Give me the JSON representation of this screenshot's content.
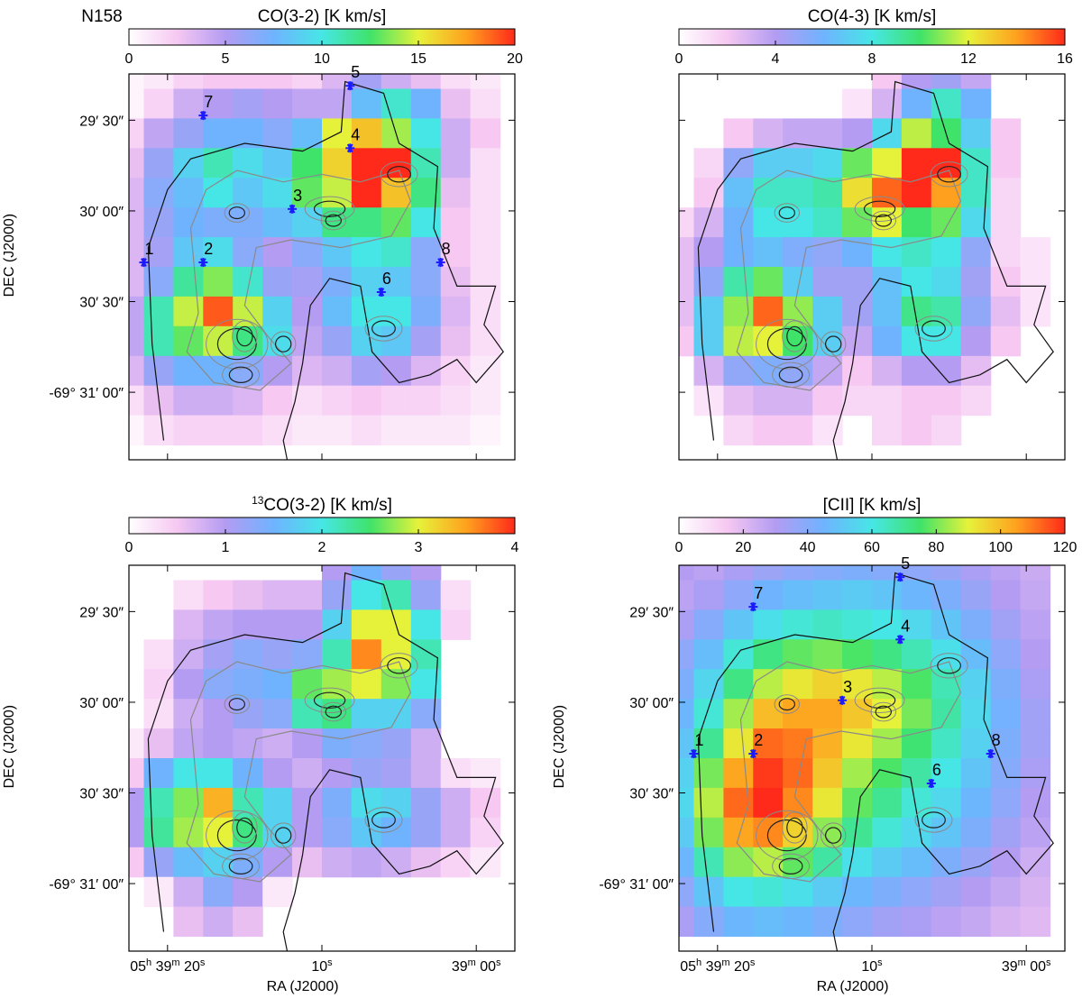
{
  "chart_data": [
    {
      "type": "heatmap",
      "label": "N158",
      "title": "CO(3-2) [K km/s]",
      "ylabel": "DEC (J2000)",
      "xlabel": "",
      "colorbar": {
        "min": 0,
        "max": 20,
        "ticks": [
          "0",
          "5",
          "10",
          "15",
          "20"
        ]
      },
      "yticks": [
        "29′ 30″",
        "30′ 00″",
        "30′ 30″",
        "-69° 31′ 00″"
      ],
      "xticks": [],
      "grid": [
        [
          0.5,
          1.0,
          2.0,
          2.5,
          2.5,
          2.5,
          2.0,
          3.5,
          5.5,
          4.0,
          3.0,
          1.5,
          1.0
        ],
        [
          0.5,
          2.0,
          4.0,
          5.0,
          5.5,
          5.0,
          4.5,
          4.5,
          8.0,
          10.5,
          7.5,
          3.0,
          1.5
        ],
        [
          2.0,
          4.5,
          6.0,
          7.5,
          7.5,
          6.5,
          8.0,
          15.0,
          16.5,
          14.0,
          10.0,
          4.0,
          2.5
        ],
        [
          3.0,
          6.0,
          9.0,
          11.0,
          9.5,
          8.5,
          12.5,
          16.0,
          20.0,
          20.0,
          11.0,
          4.0,
          1.5
        ],
        [
          3.5,
          6.5,
          8.0,
          10.0,
          8.5,
          9.5,
          13.0,
          14.5,
          20.0,
          16.5,
          12.0,
          3.0,
          1.5
        ],
        [
          3.5,
          6.0,
          7.5,
          7.0,
          7.0,
          8.0,
          9.0,
          12.0,
          12.0,
          13.0,
          10.0,
          2.5,
          1.5
        ],
        [
          3.5,
          5.5,
          8.5,
          9.5,
          6.5,
          5.0,
          6.5,
          8.5,
          10.0,
          10.5,
          6.5,
          2.5,
          1.5
        ],
        [
          3.5,
          6.5,
          11.5,
          13.5,
          10.5,
          6.0,
          5.5,
          7.0,
          9.0,
          8.5,
          6.5,
          3.0,
          1.5
        ],
        [
          4.5,
          11.0,
          14.5,
          19.0,
          14.5,
          9.0,
          5.0,
          8.0,
          10.0,
          10.0,
          7.0,
          3.5,
          1.5
        ],
        [
          4.5,
          11.0,
          13.0,
          14.5,
          12.0,
          9.5,
          4.5,
          6.0,
          9.0,
          8.5,
          5.5,
          3.0,
          1.5
        ],
        [
          3.5,
          6.0,
          7.5,
          7.5,
          6.5,
          5.0,
          3.5,
          4.0,
          5.5,
          5.0,
          3.5,
          2.0,
          1.0
        ],
        [
          1.5,
          3.0,
          4.0,
          4.0,
          3.5,
          2.5,
          1.5,
          2.0,
          2.5,
          2.0,
          2.0,
          1.5,
          1.0
        ],
        [
          0.5,
          1.5,
          2.0,
          2.0,
          2.0,
          1.5,
          1.0,
          1.0,
          1.5,
          1.0,
          1.0,
          1.0,
          0.5
        ]
      ],
      "markers": [
        {
          "label": "1",
          "ra_col": 1.45,
          "dec_row": 7.3
        },
        {
          "label": "2",
          "ra_col": 3.45,
          "dec_row": 7.3
        },
        {
          "label": "3",
          "ra_col": 6.45,
          "dec_row": 5.5
        },
        {
          "label": "4",
          "ra_col": 8.4,
          "dec_row": 3.45
        },
        {
          "label": "5",
          "ra_col": 8.4,
          "dec_row": 1.35
        },
        {
          "label": "6",
          "ra_col": 9.45,
          "dec_row": 8.3
        },
        {
          "label": "7",
          "ra_col": 3.45,
          "dec_row": 2.35
        },
        {
          "label": "8",
          "ra_col": 11.45,
          "dec_row": 7.3
        }
      ]
    },
    {
      "type": "heatmap",
      "label": "",
      "title": "CO(4-3) [K km/s]",
      "ylabel": "",
      "xlabel": "",
      "colorbar": {
        "min": 0,
        "max": 16,
        "ticks": [
          "0",
          "4",
          "8",
          "12",
          "16"
        ]
      },
      "yticks": [],
      "xticks": [],
      "grid": [
        [
          0.0,
          0.0,
          0.0,
          0.0,
          0.0,
          0.0,
          0.0,
          2.0,
          4.0,
          4.5,
          3.5,
          0.0,
          0.0
        ],
        [
          0.0,
          0.0,
          0.0,
          0.0,
          0.0,
          0.0,
          1.0,
          3.0,
          6.0,
          8.5,
          6.0,
          0.0,
          0.0
        ],
        [
          0.0,
          0.0,
          2.0,
          3.0,
          3.5,
          3.5,
          4.0,
          7.5,
          11.5,
          10.0,
          7.0,
          2.0,
          0.0
        ],
        [
          0.0,
          1.5,
          5.0,
          7.0,
          7.0,
          7.5,
          10.5,
          12.0,
          16.0,
          16.0,
          8.5,
          2.0,
          0.0
        ],
        [
          0.0,
          2.0,
          6.5,
          8.5,
          8.5,
          9.0,
          12.5,
          15.0,
          16.0,
          14.0,
          8.5,
          1.5,
          0.0
        ],
        [
          1.5,
          3.0,
          6.0,
          8.0,
          8.0,
          8.5,
          10.5,
          12.0,
          10.0,
          10.5,
          7.5,
          1.5,
          0.0
        ],
        [
          2.5,
          4.0,
          6.0,
          6.5,
          5.5,
          5.0,
          6.0,
          8.0,
          8.5,
          8.0,
          5.0,
          1.5,
          1.0
        ],
        [
          2.5,
          5.0,
          9.0,
          10.5,
          7.0,
          4.5,
          4.5,
          6.5,
          8.0,
          7.5,
          4.5,
          2.0,
          1.0
        ],
        [
          2.5,
          7.0,
          11.0,
          15.0,
          11.0,
          7.0,
          4.5,
          6.5,
          9.5,
          9.0,
          5.0,
          2.5,
          1.0
        ],
        [
          2.0,
          7.0,
          11.5,
          12.0,
          10.0,
          7.0,
          3.5,
          6.0,
          8.0,
          8.0,
          4.0,
          2.0,
          0.0
        ],
        [
          0.0,
          3.0,
          5.0,
          5.5,
          5.0,
          3.5,
          2.0,
          3.0,
          4.0,
          4.0,
          2.5,
          0.0,
          0.0
        ],
        [
          0.0,
          1.0,
          2.5,
          3.0,
          3.0,
          2.0,
          1.5,
          1.5,
          2.0,
          2.0,
          1.5,
          0.0,
          0.0
        ],
        [
          0.0,
          0.0,
          1.5,
          2.0,
          2.0,
          1.0,
          0.0,
          1.5,
          2.0,
          1.5,
          0.0,
          0.0,
          0.0
        ]
      ],
      "markers": []
    },
    {
      "type": "heatmap",
      "label": "",
      "title": "CO(3-2) [K km/s]",
      "title_prefix": "13",
      "ylabel": "DEC (J2000)",
      "xlabel": "RA (J2000)",
      "colorbar": {
        "min": 0,
        "max": 4,
        "ticks": [
          "0",
          "1",
          "2",
          "3",
          "4"
        ]
      },
      "yticks": [
        "29′ 30″",
        "30′ 00″",
        "30′ 30″",
        "-69° 31′ 00″"
      ],
      "xticks": [
        {
          "h": "05",
          "m": "39",
          "s": "20",
          "pos": 0.1
        },
        {
          "h": "",
          "m": "",
          "s": "10",
          "pos": 0.5
        },
        {
          "h": "",
          "m": "39",
          "s": "00",
          "pos": 0.9
        }
      ],
      "grid": [
        [
          0.0,
          0.0,
          0.0,
          0.0,
          0.0,
          0.0,
          0.0,
          1.0,
          1.5,
          1.2,
          1.0,
          0.0,
          0.0
        ],
        [
          0.0,
          0.0,
          0.3,
          0.5,
          0.6,
          0.7,
          0.7,
          1.2,
          2.0,
          2.2,
          1.2,
          0.3,
          0.0
        ],
        [
          0.0,
          0.0,
          0.7,
          0.9,
          1.0,
          1.0,
          1.0,
          1.8,
          3.0,
          3.0,
          2.0,
          0.4,
          0.0
        ],
        [
          0.0,
          0.3,
          0.8,
          1.1,
          1.3,
          1.2,
          1.3,
          2.2,
          3.6,
          3.0,
          2.2,
          0.0,
          0.0
        ],
        [
          0.0,
          0.4,
          1.0,
          1.3,
          1.4,
          1.5,
          2.6,
          2.8,
          3.0,
          2.7,
          2.0,
          0.0,
          0.0
        ],
        [
          0.0,
          0.3,
          0.8,
          1.0,
          1.2,
          1.3,
          2.2,
          2.4,
          1.8,
          1.8,
          1.3,
          0.0,
          0.0
        ],
        [
          0.2,
          0.6,
          0.9,
          1.0,
          0.9,
          0.8,
          1.0,
          1.4,
          1.3,
          1.2,
          0.8,
          0.0,
          0.0
        ],
        [
          0.5,
          1.5,
          2.0,
          2.0,
          1.5,
          1.0,
          0.8,
          1.0,
          1.2,
          1.1,
          0.8,
          0.3,
          0.2
        ],
        [
          1.0,
          2.2,
          2.7,
          3.4,
          2.2,
          1.8,
          1.0,
          1.4,
          1.9,
          1.8,
          1.2,
          0.8,
          0.5
        ],
        [
          1.0,
          2.3,
          2.8,
          3.0,
          2.4,
          1.8,
          1.0,
          1.3,
          1.7,
          1.5,
          1.2,
          0.8,
          0.4
        ],
        [
          0.5,
          1.2,
          1.6,
          1.8,
          1.4,
          1.0,
          0.6,
          0.8,
          0.9,
          0.8,
          0.6,
          0.4,
          0.2
        ],
        [
          0.0,
          0.2,
          0.8,
          1.3,
          1.0,
          0.2,
          0.0,
          0.0,
          0.0,
          0.0,
          0.0,
          0.0,
          0.0
        ],
        [
          0.0,
          0.0,
          0.6,
          0.8,
          0.6,
          0.0,
          0.0,
          0.0,
          0.0,
          0.0,
          0.0,
          0.0,
          0.0
        ]
      ],
      "markers": []
    },
    {
      "type": "heatmap",
      "label": "",
      "title": "[CII] [K km/s]",
      "ylabel": "DEC (J2000)",
      "xlabel": "RA (J2000)",
      "colorbar": {
        "min": 0,
        "max": 120,
        "ticks": [
          "0",
          "20",
          "40",
          "60",
          "80",
          "100",
          "120"
        ]
      },
      "yticks": [
        "29′ 30″",
        "30′ 00″",
        "30′ 30″",
        "-69° 31′ 00″"
      ],
      "xticks": [
        {
          "h": "05",
          "m": "39",
          "s": "20",
          "pos": 0.1
        },
        {
          "h": "",
          "m": "",
          "s": "10",
          "pos": 0.5
        },
        {
          "h": "",
          "m": "39",
          "s": "00",
          "pos": 0.9
        }
      ],
      "grid": [
        [
          30,
          28,
          32,
          35,
          38,
          40,
          42,
          40,
          38,
          36,
          32,
          28,
          25
        ],
        [
          28,
          32,
          38,
          45,
          48,
          50,
          52,
          50,
          46,
          42,
          36,
          30,
          26
        ],
        [
          32,
          40,
          50,
          58,
          62,
          64,
          62,
          60,
          56,
          50,
          42,
          34,
          28
        ],
        [
          38,
          48,
          62,
          72,
          78,
          80,
          76,
          72,
          66,
          58,
          48,
          38,
          30
        ],
        [
          42,
          55,
          72,
          86,
          92,
          96,
          92,
          86,
          76,
          66,
          54,
          42,
          32
        ],
        [
          46,
          62,
          84,
          100,
          104,
          104,
          98,
          90,
          80,
          68,
          56,
          44,
          34
        ],
        [
          50,
          70,
          92,
          112,
          110,
          102,
          92,
          84,
          74,
          64,
          54,
          42,
          34
        ],
        [
          54,
          80,
          104,
          118,
          112,
          98,
          84,
          76,
          68,
          60,
          50,
          40,
          32
        ],
        [
          56,
          86,
          112,
          120,
          108,
          92,
          78,
          70,
          62,
          56,
          46,
          38,
          30
        ],
        [
          52,
          80,
          104,
          108,
          96,
          82,
          70,
          62,
          56,
          50,
          42,
          34,
          28
        ],
        [
          46,
          66,
          82,
          86,
          78,
          68,
          58,
          52,
          48,
          42,
          36,
          30,
          24
        ],
        [
          38,
          50,
          60,
          62,
          58,
          52,
          46,
          42,
          38,
          34,
          30,
          26,
          22
        ],
        [
          32,
          40,
          46,
          48,
          46,
          42,
          38,
          34,
          32,
          28,
          26,
          22,
          20
        ]
      ],
      "markers": [
        {
          "label": "1",
          "ra_col": 1.45,
          "dec_row": 7.3
        },
        {
          "label": "2",
          "ra_col": 3.45,
          "dec_row": 7.3
        },
        {
          "label": "3",
          "ra_col": 6.45,
          "dec_row": 5.5
        },
        {
          "label": "4",
          "ra_col": 8.4,
          "dec_row": 3.45
        },
        {
          "label": "5",
          "ra_col": 8.4,
          "dec_row": 1.35
        },
        {
          "label": "6",
          "ra_col": 9.45,
          "dec_row": 8.3
        },
        {
          "label": "7",
          "ra_col": 3.45,
          "dec_row": 2.35
        },
        {
          "label": "8",
          "ra_col": 11.45,
          "dec_row": 7.3
        }
      ]
    }
  ],
  "colormap": [
    "#ffffff",
    "#f6c8f2",
    "#b39cf2",
    "#6fb3ff",
    "#46e6e6",
    "#3fe36a",
    "#e6f23a",
    "#ffa11e",
    "#ff2a1a"
  ],
  "marker_color": "#1a1aff"
}
